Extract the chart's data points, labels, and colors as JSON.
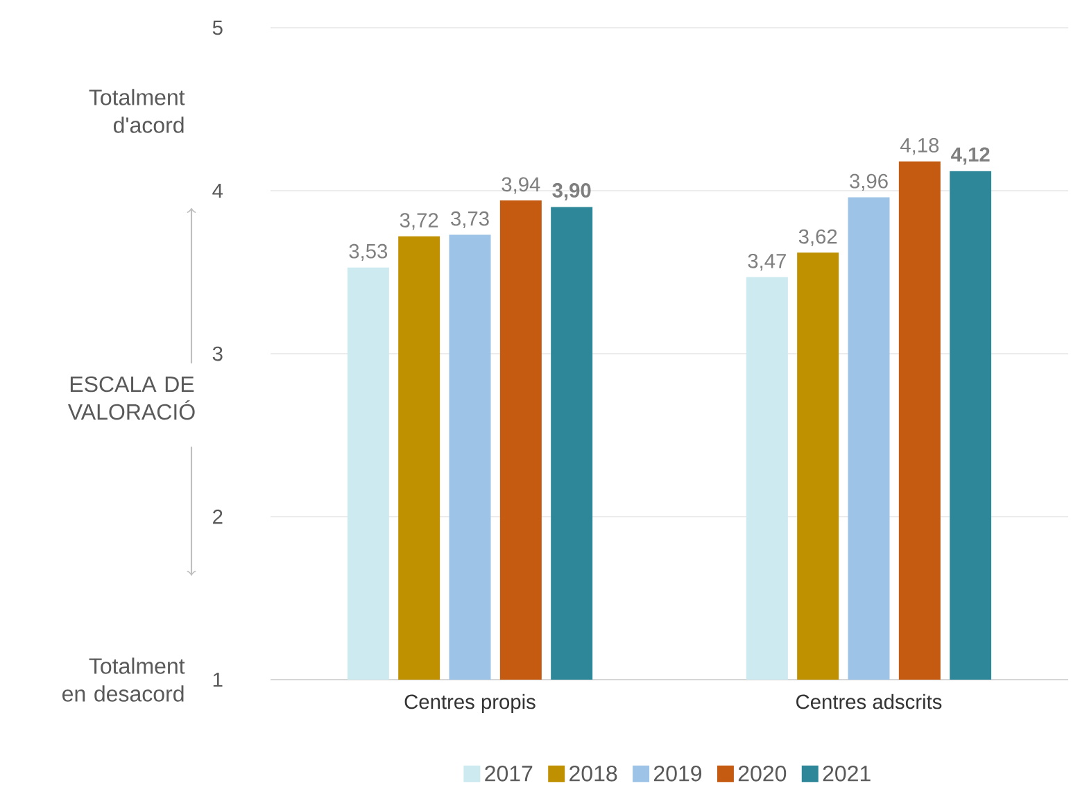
{
  "chart_data": {
    "type": "bar",
    "categories": [
      "Centres propis",
      "Centres adscrits"
    ],
    "series": [
      {
        "name": "2017",
        "color": "#cdeaf0",
        "values": [
          3.53,
          3.47
        ],
        "value_labels": [
          "3,53",
          "3,47"
        ]
      },
      {
        "name": "2018",
        "color": "#bf9000",
        "values": [
          3.72,
          3.62
        ],
        "value_labels": [
          "3,72",
          "3,62"
        ]
      },
      {
        "name": "2019",
        "color": "#9dc3e6",
        "values": [
          3.73,
          3.96
        ],
        "value_labels": [
          "3,73",
          "3,96"
        ]
      },
      {
        "name": "2020",
        "color": "#c55a11",
        "values": [
          3.94,
          4.18
        ],
        "value_labels": [
          "3,94",
          "4,18"
        ]
      },
      {
        "name": "2021",
        "color": "#2e8799",
        "values": [
          3.9,
          4.12
        ],
        "value_labels": [
          "**3,90**",
          "**4,12**"
        ]
      }
    ],
    "ylim": [
      1,
      5
    ],
    "yticks": [
      1,
      2,
      3,
      4,
      5
    ],
    "grid": "y",
    "legend": "bottom",
    "annotations": [
      "Totalment d'acord",
      "ESCALA DE VALORACIÓ",
      "Totalment en desacord"
    ]
  }
}
